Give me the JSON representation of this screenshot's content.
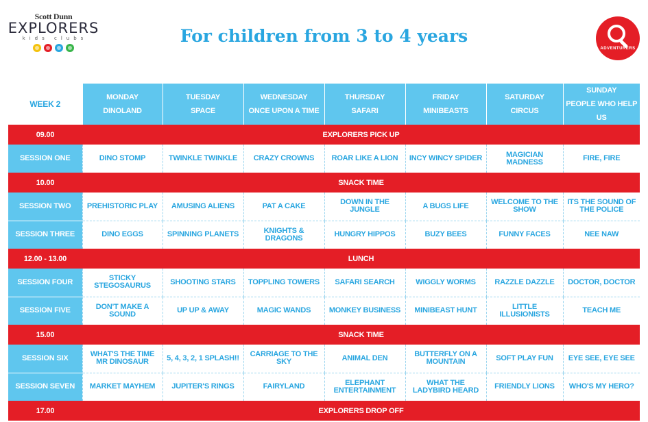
{
  "logo": {
    "brand": "Scott Dunn",
    "name": "EXPLORERS",
    "sub": "kids clubs",
    "icons": [
      {
        "name": "yellow-circle-icon",
        "color": "#f4c20d"
      },
      {
        "name": "red-circle-icon",
        "color": "#e41e26"
      },
      {
        "name": "blue-circle-icon",
        "color": "#29a6e0"
      },
      {
        "name": "green-circle-icon",
        "color": "#39b54a"
      }
    ]
  },
  "title": "For children from 3 to 4 years",
  "badge": {
    "label": "ADVENTURERS",
    "icon": "magnifying-glass-icon"
  },
  "colors": {
    "red": "#e41e26",
    "blue": "#29a6e0",
    "light_blue": "#5fc6ee"
  },
  "timetable": {
    "week": "WEEK 2",
    "days": [
      {
        "day": "MONDAY",
        "theme": "DINOLAND"
      },
      {
        "day": "TUESDAY",
        "theme": "SPACE"
      },
      {
        "day": "WEDNESDAY",
        "theme": "ONCE UPON A TIME"
      },
      {
        "day": "THURSDAY",
        "theme": "SAFARI"
      },
      {
        "day": "FRIDAY",
        "theme": "MINIBEASTS"
      },
      {
        "day": "SATURDAY",
        "theme": "CIRCUS"
      },
      {
        "day": "SUNDAY",
        "theme": "PEOPLE WHO HELP US"
      }
    ],
    "rows": [
      {
        "type": "break",
        "label": "09.00",
        "text": "EXPLORERS PICK UP"
      },
      {
        "type": "session",
        "label": "SESSION ONE",
        "cells": [
          "DINO STOMP",
          "TWINKLE TWINKLE",
          "CRAZY CROWNS",
          "ROAR LIKE A LION",
          "INCY WINCY SPIDER",
          "MAGICIAN MADNESS",
          "FIRE, FIRE"
        ]
      },
      {
        "type": "break",
        "label": "10.00",
        "text": "SNACK TIME"
      },
      {
        "type": "session",
        "label": "SESSION TWO",
        "cells": [
          "PREHISTORIC PLAY",
          "AMUSING ALIENS",
          "PAT A CAKE",
          "DOWN IN THE JUNGLE",
          "A BUGS LIFE",
          "WELCOME TO THE SHOW",
          "ITS THE SOUND OF THE POLICE"
        ]
      },
      {
        "type": "session",
        "label": "SESSION THREE",
        "cells": [
          "DINO EGGS",
          "SPINNING PLANETS",
          "KNIGHTS & DRAGONS",
          "HUNGRY HIPPOS",
          "BUZY BEES",
          "FUNNY FACES",
          "NEE NAW"
        ]
      },
      {
        "type": "break",
        "label": "12.00 - 13.00",
        "text": "LUNCH"
      },
      {
        "type": "session",
        "label": "SESSION FOUR",
        "cells": [
          "STICKY STEGOSAURUS",
          "SHOOTING STARS",
          "TOPPLING TOWERS",
          "SAFARI SEARCH",
          "WIGGLY WORMS",
          "RAZZLE DAZZLE",
          "DOCTOR, DOCTOR"
        ]
      },
      {
        "type": "session",
        "label": "SESSION FIVE",
        "cells": [
          "DON'T MAKE A SOUND",
          "UP UP & AWAY",
          "MAGIC WANDS",
          "MONKEY BUSINESS",
          "MINIBEAST HUNT",
          "LITTLE ILLUSIONISTS",
          "TEACH ME"
        ]
      },
      {
        "type": "break",
        "label": "15.00",
        "text": "SNACK TIME"
      },
      {
        "type": "session",
        "label": "SESSION SIX",
        "cells": [
          "WHAT'S THE TIME MR DINOSAUR",
          "5, 4, 3, 2, 1 SPLASH!!",
          "CARRIAGE TO THE SKY",
          "ANIMAL DEN",
          "BUTTERFLY ON A MOUNTAIN",
          "SOFT PLAY FUN",
          "EYE SEE, EYE SEE"
        ]
      },
      {
        "type": "session",
        "label": "SESSION SEVEN",
        "cells": [
          "MARKET MAYHEM",
          "JUPITER'S RINGS",
          "FAIRYLAND",
          "ELEPHANT ENTERTAINMENT",
          "WHAT THE LADYBIRD HEARD",
          "FRIENDLY LIONS",
          "WHO'S MY HERO?"
        ]
      },
      {
        "type": "break",
        "label": "17.00",
        "text": "EXPLORERS DROP OFF"
      }
    ]
  }
}
